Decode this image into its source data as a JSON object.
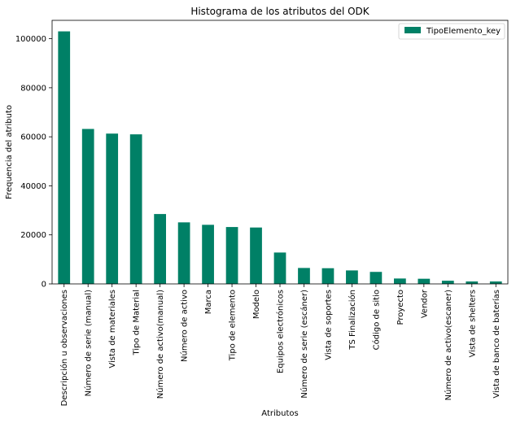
{
  "chart_data": {
    "type": "bar",
    "title": "Histograma de los atributos del ODK",
    "xlabel": "Atributos",
    "ylabel": "Frequencia del atributo",
    "ylim": [
      0,
      107500
    ],
    "yticks": [
      0,
      20000,
      40000,
      60000,
      80000,
      100000
    ],
    "grid": false,
    "legend_position": "top-right",
    "categories": [
      "Descripción u observaciones",
      "Número de serie (manual)",
      "Vista de materiales",
      "Tipo de Material",
      "Número de activo(manual)",
      "Número de activo",
      "Marca",
      "Tipo de elemento",
      "Modelo",
      "Equipos electrónicos",
      "Número de serie (escáner)",
      "Vista de soportes",
      "TS Finalización",
      "Código de sitio",
      "Proyecto",
      "Vendor",
      "Número de activo(escaner)",
      "Vista de shelters",
      "Vista de banco de baterías"
    ],
    "series": [
      {
        "name": "TipoElemento_key",
        "color": "#008066",
        "values": [
          103000,
          63200,
          61300,
          61000,
          28500,
          25100,
          24100,
          23200,
          23000,
          12800,
          6500,
          6400,
          5500,
          4900,
          2200,
          2100,
          1300,
          1000,
          1000
        ]
      }
    ]
  }
}
